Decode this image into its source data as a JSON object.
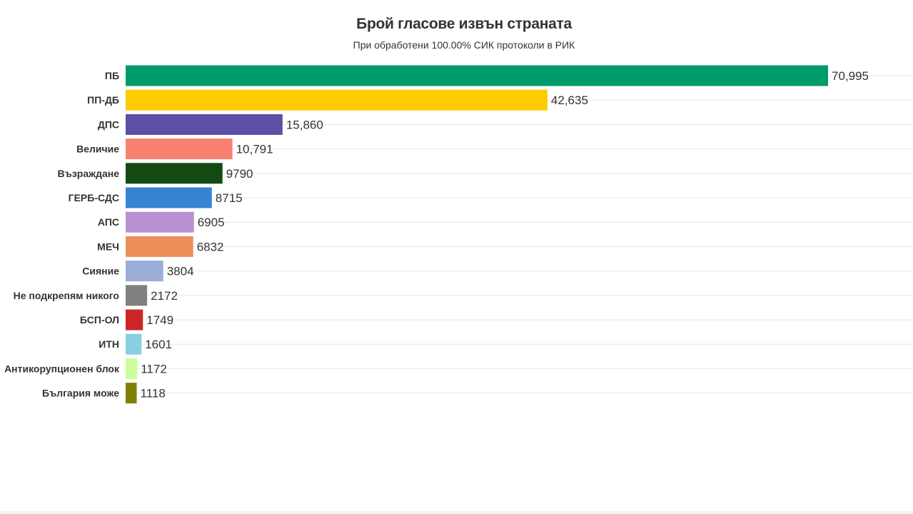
{
  "chart_data": {
    "type": "bar",
    "orientation": "horizontal",
    "title": "Брой гласове извън страната",
    "subtitle": "При обработени 100.00% СИК протоколи в РИК",
    "categories": [
      "ПБ",
      "ПП-ДБ",
      "ДПС",
      "Величие",
      "Възраждане",
      "ГЕРБ-СДС",
      "АПС",
      "МЕЧ",
      "Сияние",
      "Не подкрепям никого",
      "БСП-ОЛ",
      "ИТН",
      "Антикорупционен блок",
      "България може"
    ],
    "values": [
      70995,
      42635,
      15860,
      10791,
      9790,
      8715,
      6905,
      6832,
      3804,
      2172,
      1749,
      1601,
      1172,
      1118
    ],
    "value_labels": [
      "70,995",
      "42,635",
      "15,860",
      "10,791",
      "9790",
      "8715",
      "6905",
      "6832",
      "3804",
      "2172",
      "1749",
      "1601",
      "1172",
      "1118"
    ],
    "colors": [
      "#009b6b",
      "#fccc00",
      "#5b4fa6",
      "#f88170",
      "#124a12",
      "#3584d4",
      "#bb8fd3",
      "#ed8f5a",
      "#9aaed7",
      "#808080",
      "#cc2525",
      "#88d0e0",
      "#ccff99",
      "#808000"
    ],
    "xlim": [
      0,
      80000
    ],
    "grid": true,
    "legend": "none"
  }
}
